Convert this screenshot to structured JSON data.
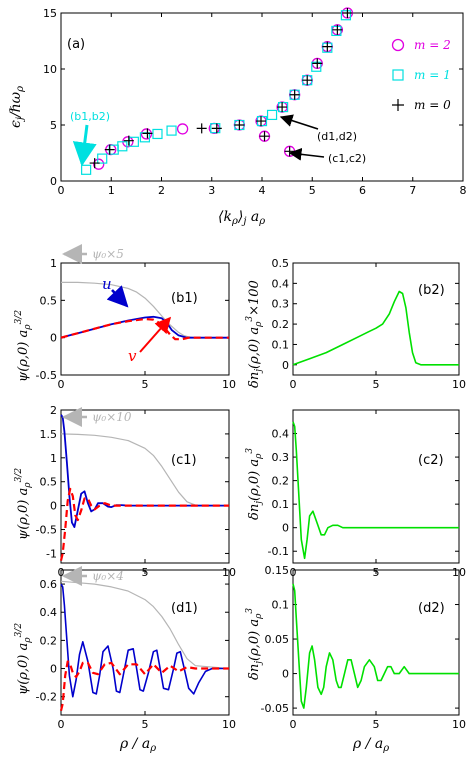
{
  "chart_data": [
    {
      "id": "a",
      "type": "scatter",
      "panel_label": "(a)",
      "xlabel": "⟨k_ρ⟩_j a_ρ",
      "ylabel": "ε_j / ħω_ρ",
      "xlim": [
        0,
        8
      ],
      "ylim": [
        0,
        15
      ],
      "xticks": [
        0,
        1,
        2,
        3,
        4,
        5,
        6,
        7,
        8
      ],
      "yticks": [
        0,
        5,
        10,
        15
      ],
      "legend_position": "top-right",
      "series": [
        {
          "name": "m = 2",
          "marker": "circle",
          "color": "#e000e0",
          "points": [
            [
              0.75,
              1.5
            ],
            [
              0.99,
              2.8
            ],
            [
              1.33,
              3.5
            ],
            [
              1.7,
              4.2
            ],
            [
              2.42,
              4.65
            ],
            [
              3.05,
              4.7
            ],
            [
              3.55,
              5.0
            ],
            [
              3.98,
              5.35
            ],
            [
              4.05,
              4.0
            ],
            [
              4.4,
              6.6
            ],
            [
              4.55,
              2.65
            ],
            [
              4.65,
              7.7
            ],
            [
              4.9,
              9.0
            ],
            [
              5.1,
              10.5
            ],
            [
              5.3,
              12.0
            ],
            [
              5.5,
              13.5
            ],
            [
              5.7,
              15.0
            ]
          ]
        },
        {
          "name": "m = 1",
          "marker": "square",
          "color": "#00e0e0",
          "points": [
            [
              0.5,
              1.0
            ],
            [
              0.82,
              2.0
            ],
            [
              1.05,
              2.8
            ],
            [
              1.22,
              3.1
            ],
            [
              1.45,
              3.5
            ],
            [
              1.67,
              3.9
            ],
            [
              1.92,
              4.2
            ],
            [
              2.2,
              4.5
            ],
            [
              3.07,
              4.72
            ],
            [
              3.55,
              5.0
            ],
            [
              4.0,
              5.35
            ],
            [
              4.2,
              5.9
            ],
            [
              4.42,
              6.6
            ],
            [
              4.65,
              7.7
            ],
            [
              4.9,
              9.0
            ],
            [
              5.08,
              10.2
            ],
            [
              5.3,
              11.9
            ],
            [
              5.48,
              13.4
            ],
            [
              5.67,
              14.8
            ]
          ]
        },
        {
          "name": "m = 0",
          "marker": "plus",
          "color": "#000000",
          "points": [
            [
              0.67,
              1.6
            ],
            [
              0.97,
              2.8
            ],
            [
              1.35,
              3.6
            ],
            [
              1.72,
              4.25
            ],
            [
              2.8,
              4.7
            ],
            [
              3.1,
              4.7
            ],
            [
              3.55,
              5.0
            ],
            [
              3.98,
              5.35
            ],
            [
              4.05,
              4.0
            ],
            [
              4.4,
              6.6
            ],
            [
              4.55,
              2.65
            ],
            [
              4.65,
              7.7
            ],
            [
              4.9,
              9.0
            ],
            [
              5.1,
              10.5
            ],
            [
              5.3,
              12.0
            ],
            [
              5.5,
              13.5
            ],
            [
              5.7,
              15.0
            ]
          ]
        }
      ],
      "annotations": [
        {
          "text": "(b1,b2)",
          "color": "#00e0e0"
        },
        {
          "text": "(d1,d2)",
          "color": "#000000"
        },
        {
          "text": "(c1,c2)",
          "color": "#000000"
        }
      ]
    },
    {
      "id": "b1",
      "type": "line",
      "panel_label": "(b1)",
      "xlim": [
        0,
        10
      ],
      "ylim": [
        -0.5,
        1
      ],
      "xticks": [
        0,
        5,
        10
      ],
      "yticks": [
        -0.5,
        0,
        0.5,
        1
      ],
      "yticklabels": [
        "-0.5",
        "0",
        "0.5",
        "1"
      ],
      "ylabel": "ψ(ρ,0) a_ρ^{3/2}",
      "series": [
        {
          "name": "ψ₀×5",
          "color": "#b5b5b5",
          "style": "solid",
          "width": 1.2,
          "x": [
            0,
            1,
            2,
            3,
            4,
            4.5,
            5,
            5.5,
            6,
            6.5,
            7,
            7.3,
            7.6,
            8,
            10
          ],
          "y": [
            0.74,
            0.74,
            0.73,
            0.71,
            0.66,
            0.61,
            0.53,
            0.42,
            0.29,
            0.17,
            0.07,
            0.03,
            0.01,
            0.0,
            0.0
          ]
        },
        {
          "name": "u",
          "color": "#0000cc",
          "style": "solid",
          "width": 1.8,
          "x": [
            0,
            0.5,
            1,
            2,
            3,
            4,
            5,
            5.5,
            6,
            6.3,
            6.6,
            7,
            7.5,
            8,
            10
          ],
          "y": [
            0.0,
            0.03,
            0.06,
            0.12,
            0.18,
            0.23,
            0.27,
            0.28,
            0.26,
            0.2,
            0.1,
            0.03,
            0.0,
            0.0,
            0.0
          ]
        },
        {
          "name": "v",
          "color": "#ff0000",
          "style": "dashed",
          "width": 2.2,
          "x": [
            0,
            0.5,
            1,
            2,
            3,
            4,
            5,
            5.5,
            6,
            6.2,
            6.5,
            6.8,
            7.2,
            7.6,
            8,
            10
          ],
          "y": [
            0.0,
            0.03,
            0.06,
            0.12,
            0.18,
            0.22,
            0.25,
            0.24,
            0.18,
            0.12,
            0.04,
            -0.02,
            -0.02,
            0.0,
            0.0,
            0.0
          ]
        }
      ],
      "annotations": [
        {
          "text": "ψ₀×5",
          "color": "#b5b5b5"
        },
        {
          "text": "u",
          "color": "#0000cc"
        },
        {
          "text": "v",
          "color": "#ff0000"
        }
      ]
    },
    {
      "id": "b2",
      "type": "line",
      "panel_label": "(b2)",
      "xlim": [
        0,
        10
      ],
      "ylim": [
        -0.05,
        0.5
      ],
      "xticks": [
        0,
        5,
        10
      ],
      "yticks": [
        0,
        0.1,
        0.2,
        0.3,
        0.4,
        0.5
      ],
      "yticklabels": [
        "0",
        "0.1",
        "0.2",
        "0.3",
        "0.4",
        "0.5"
      ],
      "ylabel": "δn_j(ρ,0) a_ρ^3 × 100",
      "series": [
        {
          "name": "δn",
          "color": "#00e000",
          "style": "solid",
          "width": 1.6,
          "x": [
            0,
            1,
            2,
            3,
            4,
            4.5,
            5,
            5.4,
            5.8,
            6.1,
            6.4,
            6.6,
            6.8,
            7,
            7.2,
            7.4,
            7.7,
            8,
            10
          ],
          "y": [
            0.0,
            0.03,
            0.06,
            0.1,
            0.14,
            0.16,
            0.18,
            0.2,
            0.25,
            0.31,
            0.36,
            0.35,
            0.28,
            0.16,
            0.06,
            0.01,
            0.0,
            0.0,
            0.0
          ]
        }
      ]
    },
    {
      "id": "c1",
      "type": "line",
      "panel_label": "(c1)",
      "xlim": [
        0,
        10
      ],
      "ylim": [
        -1.2,
        2.0
      ],
      "xticks": [
        0,
        5,
        10
      ],
      "yticks": [
        -1,
        -0.5,
        0,
        0.5,
        1,
        1.5,
        2
      ],
      "yticklabels": [
        "-1",
        "-0.5",
        "0",
        "0.5",
        "1",
        "1.5",
        "2"
      ],
      "ylabel": "ψ(ρ,0) a_ρ^{3/2}",
      "series": [
        {
          "name": "ψ₀×10",
          "color": "#b5b5b5",
          "style": "solid",
          "width": 1.2,
          "x": [
            0,
            1,
            2,
            3,
            4,
            5,
            5.5,
            6,
            6.5,
            7,
            7.5,
            8,
            10
          ],
          "y": [
            1.5,
            1.49,
            1.47,
            1.43,
            1.36,
            1.2,
            1.05,
            0.82,
            0.55,
            0.28,
            0.08,
            0.01,
            0.0
          ]
        },
        {
          "name": "u",
          "color": "#0000cc",
          "style": "solid",
          "width": 1.8,
          "x": [
            0,
            0.1,
            0.2,
            0.35,
            0.5,
            0.65,
            0.8,
            1.0,
            1.2,
            1.4,
            1.6,
            1.8,
            2.0,
            2.2,
            2.5,
            2.8,
            3.0,
            3.3,
            3.6,
            4,
            10
          ],
          "y": [
            1.9,
            1.85,
            1.55,
            0.9,
            0.2,
            -0.35,
            -0.45,
            -0.1,
            0.25,
            0.3,
            0.05,
            -0.12,
            -0.08,
            0.05,
            0.05,
            -0.02,
            -0.03,
            0.01,
            0.01,
            0.0,
            0.0
          ]
        },
        {
          "name": "v",
          "color": "#ff0000",
          "style": "dashed",
          "width": 2.2,
          "x": [
            0,
            0.1,
            0.25,
            0.4,
            0.55,
            0.7,
            0.85,
            1.0,
            1.2,
            1.4,
            1.6,
            1.8,
            2.0,
            2.3,
            2.6,
            3.0,
            3.5,
            10
          ],
          "y": [
            -1.15,
            -1.0,
            -0.5,
            0.1,
            0.35,
            0.2,
            -0.2,
            -0.3,
            -0.1,
            0.15,
            0.15,
            0.0,
            -0.08,
            0.0,
            0.05,
            0.0,
            0.0,
            0.0
          ]
        }
      ],
      "annotations": [
        {
          "text": "ψ₀×10",
          "color": "#b5b5b5"
        }
      ]
    },
    {
      "id": "c2",
      "type": "line",
      "panel_label": "(c2)",
      "xlim": [
        0,
        10
      ],
      "ylim": [
        -0.15,
        0.5
      ],
      "xticks": [
        0,
        5,
        10
      ],
      "yticks": [
        -0.1,
        0,
        0.1,
        0.2,
        0.3,
        0.4
      ],
      "yticklabels": [
        "-0.1",
        "0",
        "0.1",
        "0.2",
        "0.3",
        "0.4"
      ],
      "ylabel": "δn_j(ρ,0) a_ρ^3",
      "series": [
        {
          "name": "δn",
          "color": "#00e000",
          "style": "solid",
          "width": 1.6,
          "x": [
            0,
            0.1,
            0.2,
            0.35,
            0.5,
            0.7,
            0.85,
            1.0,
            1.2,
            1.45,
            1.7,
            1.9,
            2.1,
            2.4,
            2.7,
            3.0,
            3.3,
            3.6,
            4,
            5,
            10
          ],
          "y": [
            0.45,
            0.43,
            0.33,
            0.14,
            -0.05,
            -0.13,
            -0.05,
            0.05,
            0.07,
            0.02,
            -0.03,
            -0.03,
            0.0,
            0.01,
            0.01,
            0.0,
            0.0,
            0.0,
            0.0,
            0.0,
            0.0
          ]
        }
      ]
    },
    {
      "id": "d1",
      "type": "line",
      "panel_label": "(d1)",
      "xlim": [
        0,
        10
      ],
      "ylim": [
        -0.33,
        0.7
      ],
      "xticks": [
        0,
        5,
        10
      ],
      "yticks": [
        -0.2,
        0,
        0.2,
        0.4,
        0.6
      ],
      "yticklabels": [
        "-0.2",
        "0",
        "0.2",
        "0.4",
        "0.6"
      ],
      "ylabel": "ψ(ρ,0) a_ρ^{3/2}",
      "xlabel": "ρ / a_ρ",
      "series": [
        {
          "name": "ψ₀×4",
          "color": "#b5b5b5",
          "style": "solid",
          "width": 1.2,
          "x": [
            0,
            1,
            2,
            3,
            4,
            5,
            5.5,
            6,
            6.5,
            7,
            7.5,
            8,
            10
          ],
          "y": [
            0.62,
            0.61,
            0.6,
            0.58,
            0.55,
            0.49,
            0.44,
            0.37,
            0.28,
            0.17,
            0.07,
            0.02,
            0.0
          ]
        },
        {
          "name": "u",
          "color": "#0000cc",
          "style": "solid",
          "width": 1.6,
          "x": [
            0,
            0.1,
            0.2,
            0.35,
            0.5,
            0.7,
            0.9,
            1.1,
            1.3,
            1.6,
            1.9,
            2.1,
            2.3,
            2.5,
            2.8,
            3.1,
            3.3,
            3.5,
            3.7,
            4.0,
            4.3,
            4.5,
            4.7,
            4.9,
            5.2,
            5.5,
            5.7,
            5.9,
            6.1,
            6.4,
            6.7,
            6.9,
            7.1,
            7.3,
            7.6,
            7.9,
            8.2,
            8.6,
            9,
            10
          ],
          "y": [
            0.6,
            0.58,
            0.45,
            0.2,
            -0.05,
            -0.2,
            -0.08,
            0.1,
            0.19,
            0.05,
            -0.17,
            -0.18,
            -0.05,
            0.12,
            0.16,
            0.0,
            -0.16,
            -0.17,
            -0.05,
            0.13,
            0.14,
            0.0,
            -0.15,
            -0.16,
            -0.03,
            0.12,
            0.13,
            0.0,
            -0.14,
            -0.15,
            0.0,
            0.11,
            0.12,
            0.02,
            -0.14,
            -0.18,
            -0.1,
            -0.02,
            0.0,
            0.0
          ]
        },
        {
          "name": "v",
          "color": "#ff0000",
          "style": "dashed",
          "width": 2.2,
          "x": [
            0,
            0.1,
            0.25,
            0.4,
            0.55,
            0.7,
            0.9,
            1.1,
            1.3,
            1.6,
            1.9,
            2.2,
            2.6,
            3.0,
            3.5,
            4,
            4.5,
            5,
            5.5,
            6,
            6.5,
            7,
            7.5,
            8,
            8.5,
            10
          ],
          "y": [
            -0.3,
            -0.25,
            -0.05,
            0.05,
            0.03,
            -0.03,
            -0.06,
            -0.02,
            0.04,
            0.04,
            -0.03,
            -0.04,
            0.03,
            0.04,
            -0.04,
            0.03,
            0.03,
            -0.04,
            0.03,
            -0.03,
            0.02,
            -0.02,
            0.01,
            0.0,
            0.0,
            0.0
          ]
        }
      ],
      "annotations": [
        {
          "text": "ψ₀×4",
          "color": "#b5b5b5"
        }
      ]
    },
    {
      "id": "d2",
      "type": "line",
      "panel_label": "(d2)",
      "xlim": [
        0,
        10
      ],
      "ylim": [
        -0.06,
        0.15
      ],
      "xticks": [
        0,
        5,
        10
      ],
      "yticks": [
        -0.05,
        0,
        0.05,
        0.1,
        0.15
      ],
      "yticklabels": [
        "-0.05",
        "0",
        "0.05",
        "0.1",
        "0.15"
      ],
      "ylabel": "δn_j(ρ,0) a_ρ^3",
      "xlabel": "ρ / a_ρ",
      "series": [
        {
          "name": "δn",
          "color": "#00e000",
          "style": "solid",
          "width": 1.6,
          "x": [
            0,
            0.1,
            0.2,
            0.35,
            0.5,
            0.65,
            0.8,
            1.0,
            1.15,
            1.3,
            1.5,
            1.7,
            1.85,
            2.0,
            2.2,
            2.4,
            2.6,
            2.75,
            2.9,
            3.1,
            3.3,
            3.5,
            3.7,
            3.9,
            4.1,
            4.3,
            4.6,
            4.9,
            5.1,
            5.3,
            5.5,
            5.7,
            5.9,
            6.1,
            6.4,
            6.7,
            7,
            7.5,
            8,
            10
          ],
          "y": [
            0.13,
            0.12,
            0.08,
            0.02,
            -0.04,
            -0.05,
            -0.02,
            0.03,
            0.04,
            0.02,
            -0.02,
            -0.03,
            -0.02,
            0.01,
            0.03,
            0.02,
            -0.01,
            -0.02,
            -0.02,
            0.0,
            0.02,
            0.02,
            0.0,
            -0.02,
            -0.01,
            0.01,
            0.02,
            0.01,
            -0.01,
            -0.01,
            0.0,
            0.01,
            0.01,
            0.0,
            0.0,
            0.01,
            0.0,
            0.0,
            0.0,
            0.0
          ]
        }
      ]
    }
  ]
}
